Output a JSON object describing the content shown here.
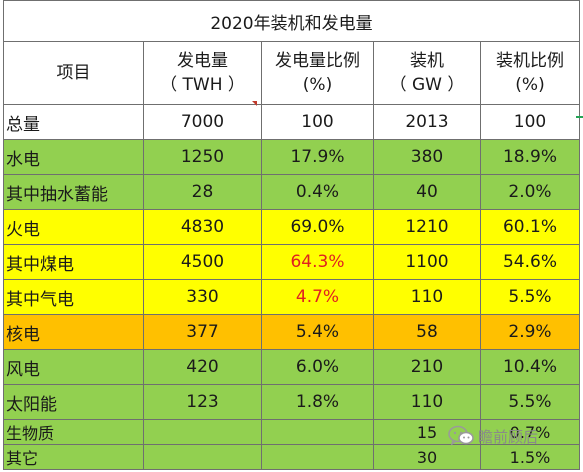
{
  "title": "2020年装机和发电量",
  "headers": {
    "item": "项目",
    "gen_line1": "发电量",
    "gen_line2": "（ TWH ）",
    "gen_ratio_line1": "发电量比例",
    "gen_ratio_line2": "(%)",
    "cap_line1": "装机",
    "cap_line2": "（ GW ）",
    "cap_ratio_line1": "装机比例",
    "cap_ratio_line2": "(%)"
  },
  "rows": [
    {
      "item": "总量",
      "gen": "7000",
      "gen_ratio": "100",
      "cap": "2013",
      "cap_ratio": "100",
      "color": "#ffffff"
    },
    {
      "item": "水电",
      "gen": "1250",
      "gen_ratio": "17.9%",
      "cap": "380",
      "cap_ratio": "18.9%",
      "color": "#92d050"
    },
    {
      "item": "其中抽水蓄能",
      "gen": "28",
      "gen_ratio": "0.4%",
      "cap": "40",
      "cap_ratio": "2.0%",
      "color": "#92d050"
    },
    {
      "item": "火电",
      "gen": "4830",
      "gen_ratio": "69.0%",
      "cap": "1210",
      "cap_ratio": "60.1%",
      "color": "#ffff00"
    },
    {
      "item": "其中煤电",
      "gen": "4500",
      "gen_ratio": "64.3%",
      "cap": "1100",
      "cap_ratio": "54.6%",
      "color": "#ffff00",
      "gen_ratio_color": "#e02020"
    },
    {
      "item": "其中气电",
      "gen": "330",
      "gen_ratio": "4.7%",
      "cap": "110",
      "cap_ratio": "5.5%",
      "color": "#ffff00",
      "gen_ratio_color": "#e02020"
    },
    {
      "item": "核电",
      "gen": "377",
      "gen_ratio": "5.4%",
      "cap": "58",
      "cap_ratio": "2.9%",
      "color": "#ffc000"
    },
    {
      "item": "风电",
      "gen": "420",
      "gen_ratio": "6.0%",
      "cap": "210",
      "cap_ratio": "10.4%",
      "color": "#92d050"
    },
    {
      "item": "太阳能",
      "gen": "123",
      "gen_ratio": "1.8%",
      "cap": "110",
      "cap_ratio": "5.5%",
      "color": "#92d050"
    },
    {
      "item": "生物质",
      "gen": "",
      "gen_ratio": "",
      "cap": "15",
      "cap_ratio": "0.7%",
      "color": "#92d050"
    },
    {
      "item": "其它",
      "gen": "",
      "gen_ratio": "",
      "cap": "30",
      "cap_ratio": "1.5%",
      "color": "#92d050"
    }
  ],
  "watermark": {
    "text": "瞻前顾后",
    "icon": "wechat-icon"
  }
}
